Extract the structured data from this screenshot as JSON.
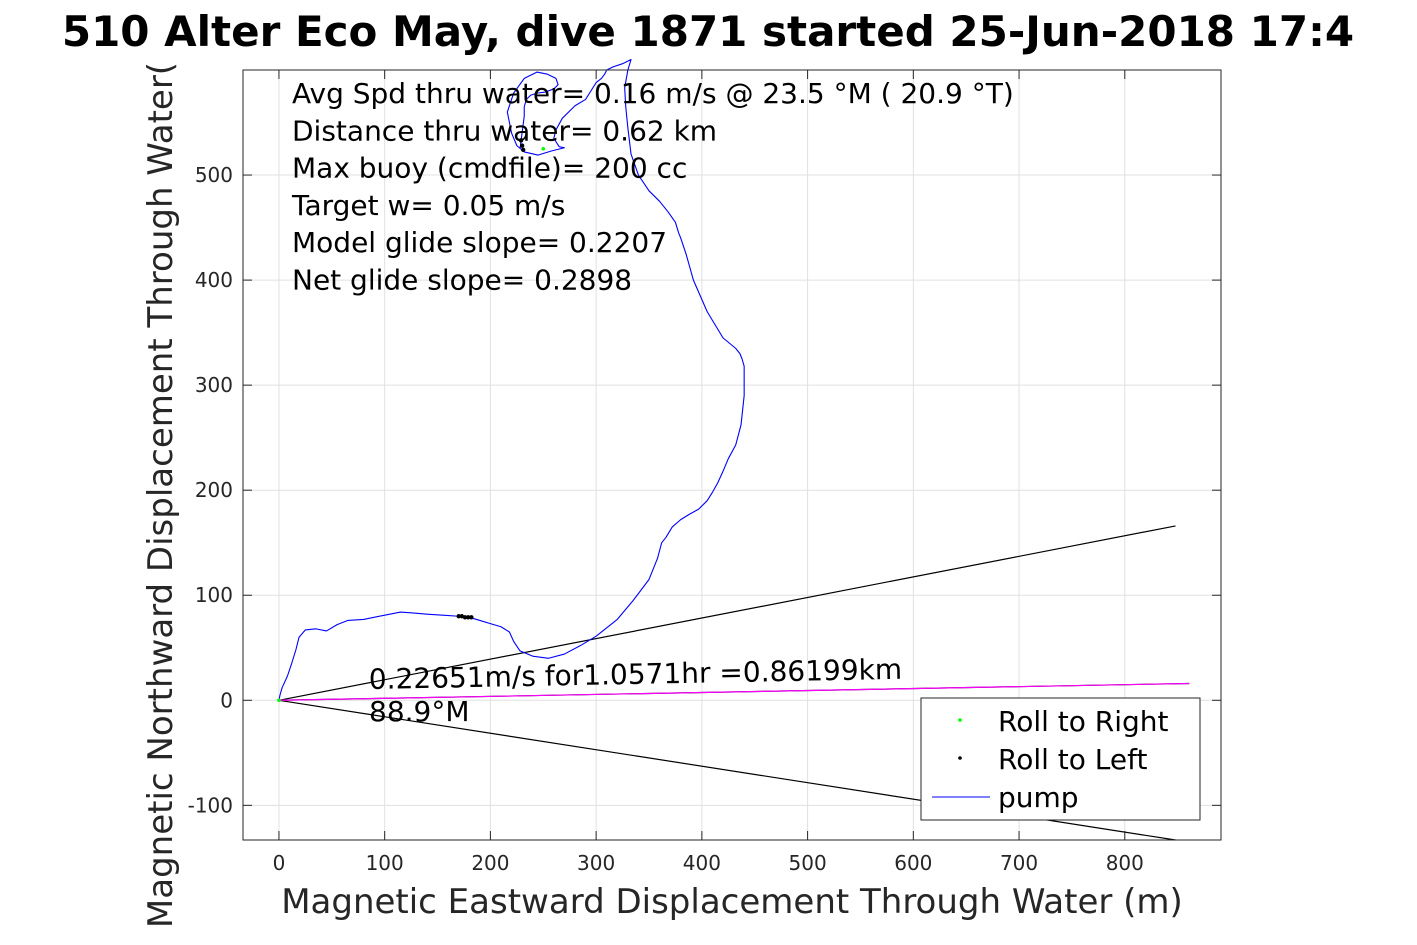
{
  "chart_data": {
    "type": "line",
    "title": "510 Alter Eco May, dive 1871 started 25-Jun-2018 17:4",
    "xlabel": "Magnetic Eastward Displacement Through Water (m)",
    "ylabel": "Magnetic Northward Displacement Through Water(",
    "xlim": [
      -34,
      891
    ],
    "ylim": [
      -133,
      600
    ],
    "xticks": [
      0,
      100,
      200,
      300,
      400,
      500,
      600,
      700,
      800
    ],
    "yticks": [
      -100,
      0,
      100,
      200,
      300,
      400,
      500
    ],
    "grid": true,
    "legend_position": "bottom-right",
    "stats": [
      "Avg Spd thru water=  0.16 m/s @  23.5 °M ( 20.9 °T)",
      "Distance thru water=  0.62 km",
      "Max buoy (cmdfile)= 200 cc",
      "Target w= 0.05 m/s",
      "Model glide slope= 0.2207",
      "Net glide slope= 0.2898"
    ],
    "annotation_line1": "0.22651m/s for1.0571hr =0.86199km",
    "annotation_line2": "88.9°M",
    "series": [
      {
        "name": "pump",
        "color": "#0000ff",
        "x": [
          0,
          1,
          3,
          8,
          12,
          16,
          19,
          25,
          35,
          45,
          55,
          65,
          80,
          100,
          115,
          128,
          140,
          155,
          170,
          180,
          190,
          200,
          210,
          218,
          222,
          228,
          240,
          255,
          270,
          285,
          300,
          320,
          335,
          350,
          358,
          362,
          366,
          372,
          380,
          388,
          397,
          405,
          410,
          415,
          420,
          425,
          432,
          437,
          440,
          440,
          438,
          436,
          432,
          420,
          405,
          392,
          385,
          380,
          378,
          375,
          368,
          360,
          350,
          340,
          333,
          330,
          328,
          327,
          330,
          333,
          325,
          316,
          310,
          308,
          305,
          300,
          295,
          290,
          280,
          268,
          262,
          260,
          265,
          270,
          258,
          245,
          232,
          225,
          220,
          216,
          222,
          232,
          244,
          254,
          262,
          264,
          260,
          252,
          244,
          238,
          234,
          232,
          232,
          228
        ],
        "y": [
          0,
          5,
          12,
          23,
          35,
          48,
          60,
          67,
          68,
          66,
          72,
          76,
          77,
          81,
          84,
          83,
          82,
          81,
          80,
          79,
          76,
          73,
          70,
          65,
          56,
          47,
          42,
          40,
          44,
          52,
          61,
          77,
          95,
          115,
          135,
          150,
          155,
          165,
          172,
          177,
          182,
          190,
          198,
          207,
          218,
          230,
          243,
          262,
          290,
          318,
          325,
          330,
          335,
          345,
          370,
          400,
          425,
          440,
          445,
          455,
          465,
          475,
          485,
          500,
          520,
          545,
          565,
          583,
          600,
          610,
          606,
          603,
          600,
          596,
          592,
          588,
          580,
          572,
          566,
          554,
          543,
          535,
          527,
          526,
          523,
          519,
          522,
          528,
          540,
          560,
          578,
          592,
          598,
          596,
          592,
          586,
          582,
          579,
          578,
          576,
          572,
          565,
          556,
          525
        ]
      },
      {
        "name": "Roll to Right",
        "color": "#00ff00",
        "x": [
          0,
          250
        ],
        "y": [
          0,
          525
        ]
      },
      {
        "name": "Roll to Left",
        "color": "#000000",
        "x": [
          170,
          173,
          176,
          179,
          182,
          229,
          230,
          231
        ],
        "y": [
          80,
          80,
          79,
          79,
          79,
          533,
          528,
          524
        ]
      }
    ],
    "extra_lines": [
      {
        "color": "#000000",
        "x": [
          0,
          848
        ],
        "y": [
          0,
          166
        ]
      },
      {
        "color": "#000000",
        "x": [
          0,
          848
        ],
        "y": [
          0,
          -133
        ]
      },
      {
        "color": "#000000",
        "x": [
          0,
          861
        ],
        "y": [
          0,
          16
        ]
      },
      {
        "color": "#ff00ff",
        "x": [
          0,
          861
        ],
        "y": [
          0,
          16
        ]
      }
    ]
  }
}
